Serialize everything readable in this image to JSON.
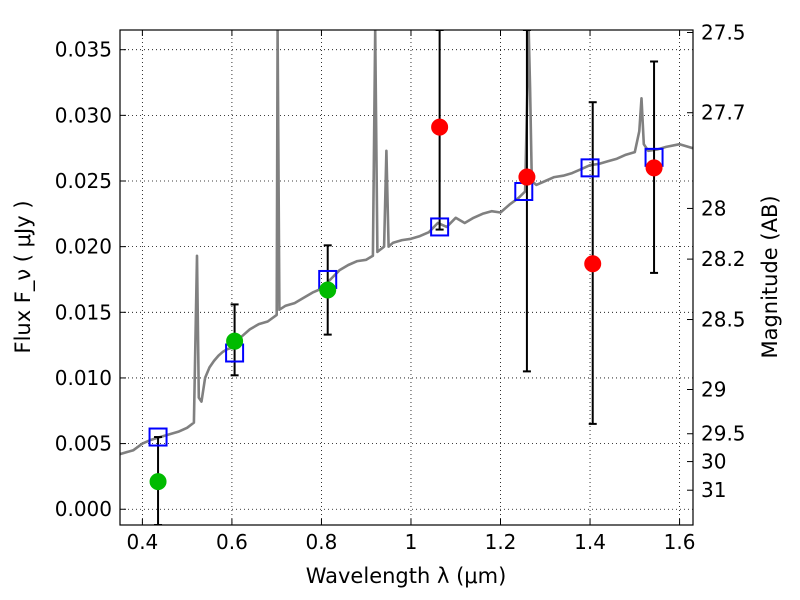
{
  "chart_data": {
    "type": "line",
    "xlabel": "Wavelength  λ (μm)",
    "ylabel": "Flux  F_ν  ( μJy )",
    "y2label": "Magnitude (AB)",
    "xlim": [
      0.35,
      1.63
    ],
    "ylim": [
      -0.0012,
      0.0365
    ],
    "grid": true,
    "x_ticks": [
      0.4,
      0.6,
      0.8,
      1.0,
      1.2,
      1.4,
      1.6
    ],
    "x_tick_labels": [
      "0.4",
      "0.6",
      "0.8",
      "1",
      "1.2",
      "1.4",
      "1.6"
    ],
    "y_ticks": [
      0.0,
      0.005,
      0.01,
      0.015,
      0.02,
      0.025,
      0.03,
      0.035
    ],
    "y_tick_labels": [
      "0.000",
      "0.005",
      "0.010",
      "0.015",
      "0.020",
      "0.025",
      "0.030",
      "0.035"
    ],
    "y2_ticks": [
      {
        "label": "27.5",
        "flux": 0.03631
      },
      {
        "label": "27.7",
        "flux": 0.0302
      },
      {
        "label": "28",
        "flux": 0.02291
      },
      {
        "label": "28.2",
        "flux": 0.01905
      },
      {
        "label": "28.5",
        "flux": 0.01445
      },
      {
        "label": "29",
        "flux": 0.00912
      },
      {
        "label": "29.5",
        "flux": 0.00575
      },
      {
        "label": "30",
        "flux": 0.00363
      },
      {
        "label": "31",
        "flux": 0.00145
      }
    ],
    "colors": {
      "spectrum": "#808080",
      "model_box": "#0000ff",
      "detection": "#00bb00",
      "upper": "#ff0000",
      "errorbar": "#000000"
    },
    "spectrum": {
      "name": "",
      "x": [
        0.35,
        0.38,
        0.4,
        0.42,
        0.44,
        0.46,
        0.48,
        0.5,
        0.515,
        0.522,
        0.526,
        0.532,
        0.54,
        0.55,
        0.56,
        0.57,
        0.58,
        0.59,
        0.6,
        0.62,
        0.64,
        0.66,
        0.68,
        0.7,
        0.702,
        0.706,
        0.72,
        0.74,
        0.76,
        0.78,
        0.8,
        0.82,
        0.84,
        0.86,
        0.88,
        0.9,
        0.915,
        0.92,
        0.925,
        0.94,
        0.945,
        0.95,
        0.96,
        0.98,
        1.0,
        1.02,
        1.04,
        1.06,
        1.08,
        1.1,
        1.12,
        1.14,
        1.16,
        1.18,
        1.2,
        1.22,
        1.24,
        1.255,
        1.26,
        1.263,
        1.266,
        1.27,
        1.28,
        1.3,
        1.32,
        1.34,
        1.36,
        1.38,
        1.4,
        1.42,
        1.44,
        1.46,
        1.48,
        1.5,
        1.51,
        1.515,
        1.52,
        1.53,
        1.55,
        1.57,
        1.6,
        1.63
      ],
      "y": [
        0.0042,
        0.0045,
        0.005,
        0.0053,
        0.0055,
        0.0057,
        0.0059,
        0.0062,
        0.0066,
        0.0193,
        0.0085,
        0.0082,
        0.01,
        0.0108,
        0.0113,
        0.0117,
        0.012,
        0.0122,
        0.0123,
        0.0131,
        0.0137,
        0.0141,
        0.0143,
        0.0148,
        0.0365,
        0.0152,
        0.0155,
        0.0157,
        0.0161,
        0.0165,
        0.0168,
        0.0175,
        0.0182,
        0.0186,
        0.0189,
        0.019,
        0.0193,
        0.0365,
        0.0196,
        0.02,
        0.0273,
        0.02,
        0.0203,
        0.0205,
        0.0206,
        0.0208,
        0.0211,
        0.0218,
        0.0215,
        0.0222,
        0.0218,
        0.0222,
        0.0225,
        0.0227,
        0.0226,
        0.0232,
        0.0237,
        0.0242,
        0.032,
        0.0365,
        0.032,
        0.025,
        0.0247,
        0.025,
        0.0253,
        0.0254,
        0.0256,
        0.0259,
        0.0262,
        0.0263,
        0.0265,
        0.0267,
        0.027,
        0.0272,
        0.0288,
        0.0313,
        0.0278,
        0.0273,
        0.0274,
        0.0276,
        0.0278,
        0.0275
      ]
    },
    "model_boxes": {
      "name": "",
      "x": [
        0.435,
        0.606,
        0.814,
        1.064,
        1.252,
        1.4,
        1.543
      ],
      "y": [
        0.0055,
        0.0119,
        0.0175,
        0.0215,
        0.0242,
        0.026,
        0.0268
      ]
    },
    "detections": {
      "name": "",
      "x": [
        0.435,
        0.606,
        0.814
      ],
      "y": [
        0.0021,
        0.0128,
        0.0167
      ],
      "y_low": [
        -0.0012,
        0.0102,
        0.0133
      ],
      "y_high": [
        0.0055,
        0.0156,
        0.0201
      ]
    },
    "non_detections": {
      "name": "",
      "x": [
        1.064,
        1.259,
        1.406,
        1.543
      ],
      "y": [
        0.0291,
        0.0253,
        0.0187,
        0.026
      ],
      "y_low": [
        0.0213,
        0.0105,
        0.0065,
        0.018
      ],
      "y_high": [
        0.0365,
        0.0365,
        0.031,
        0.0341
      ]
    }
  }
}
